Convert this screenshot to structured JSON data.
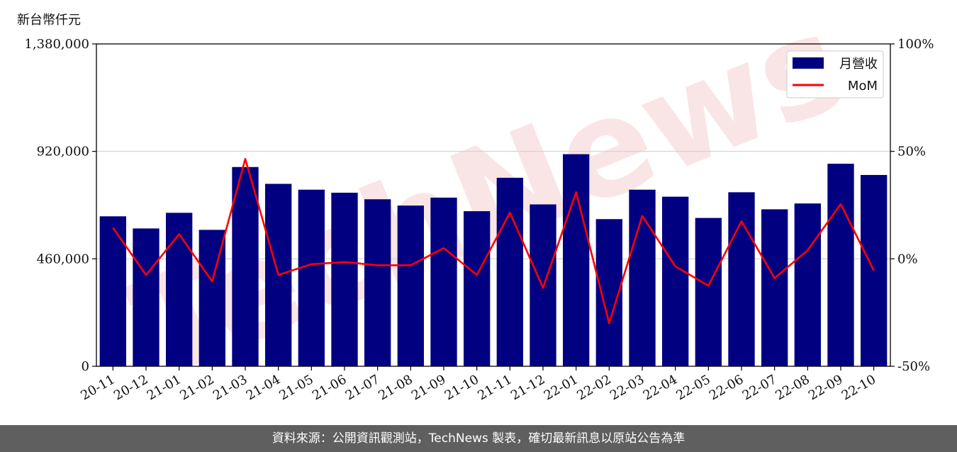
{
  "unit_label": "新台幣仟元",
  "watermark_text": "TechNews",
  "footer_text": "資料來源：公開資訊觀測站，TechNews 製表，確切最新訊息以原站公告為準",
  "colors": {
    "bar": "#000080",
    "line": "#ff0000",
    "grid": "#d0d0d0"
  },
  "chart_data": {
    "type": "bar",
    "categories": [
      "20-11",
      "20-12",
      "21-01",
      "21-02",
      "21-03",
      "21-04",
      "21-05",
      "21-06",
      "21-07",
      "21-08",
      "21-09",
      "21-10",
      "21-11",
      "21-12",
      "22-01",
      "22-02",
      "22-03",
      "22-04",
      "22-05",
      "22-06",
      "22-07",
      "22-08",
      "22-09",
      "22-10"
    ],
    "series": [
      {
        "name": "月營收",
        "type": "bar",
        "axis": "left",
        "values": [
          642000,
          590000,
          657000,
          584000,
          853000,
          781000,
          756000,
          743000,
          715000,
          688000,
          722000,
          664000,
          807000,
          693000,
          908000,
          630000,
          756000,
          726000,
          635000,
          745000,
          672000,
          697000,
          867000,
          819000
        ]
      },
      {
        "name": "MoM",
        "type": "line",
        "axis": "right",
        "values": [
          14.5,
          -7.5,
          11.5,
          -10.5,
          46.5,
          -7.5,
          -2.5,
          -1.5,
          -3.0,
          -3.0,
          5.0,
          -7.5,
          21.5,
          -13.5,
          31.0,
          -30.0,
          20.0,
          -3.5,
          -12.5,
          17.5,
          -9.0,
          4.0,
          25.5,
          -5.5
        ]
      }
    ],
    "y_left": {
      "ylim": [
        0,
        1380000
      ],
      "ticks": [
        0,
        460000,
        920000,
        1380000
      ],
      "tick_labels": [
        "0",
        "460,000",
        "920,000",
        "1,380,000"
      ]
    },
    "y_right": {
      "ylim": [
        -50,
        100
      ],
      "ticks": [
        -50,
        0,
        50,
        100
      ],
      "tick_labels": [
        "-50%",
        "0%",
        "50%",
        "100%"
      ]
    },
    "grid": true,
    "legend": "top-right"
  }
}
